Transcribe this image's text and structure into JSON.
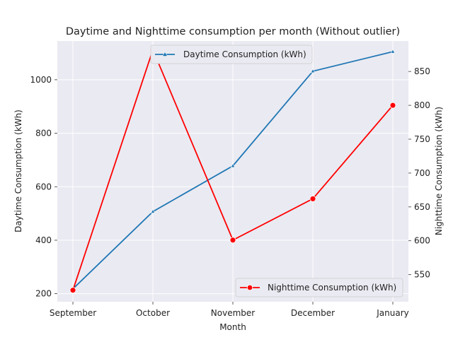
{
  "chart_data": {
    "type": "line",
    "title": "Daytime and Nighttime consumption per month (Without outlier)",
    "xlabel": "Month",
    "categories": [
      "September",
      "October",
      "November",
      "December",
      "January"
    ],
    "grid": true,
    "y_left": {
      "label": "Daytime Consumption (kWh)",
      "ylim": [
        170,
        1145
      ],
      "ticks": [
        200,
        400,
        600,
        800,
        1000
      ]
    },
    "y_right": {
      "label": "Nighttime Consumption (kWh)",
      "ylim": [
        510,
        895
      ],
      "ticks": [
        550,
        600,
        650,
        700,
        750,
        800,
        850
      ]
    },
    "series": [
      {
        "name": "Daytime Consumption (kWh)",
        "axis": "left",
        "color": "#1f77b4",
        "marker": "triangle",
        "values": [
          218,
          507,
          678,
          1032,
          1105
        ],
        "legend_position": "top-center"
      },
      {
        "name": "Nighttime Consumption (kWh)",
        "axis": "right",
        "color": "#ff0000",
        "marker": "circle",
        "values": [
          527,
          882,
          601,
          662,
          800
        ],
        "legend_position": "bottom-right"
      }
    ]
  }
}
